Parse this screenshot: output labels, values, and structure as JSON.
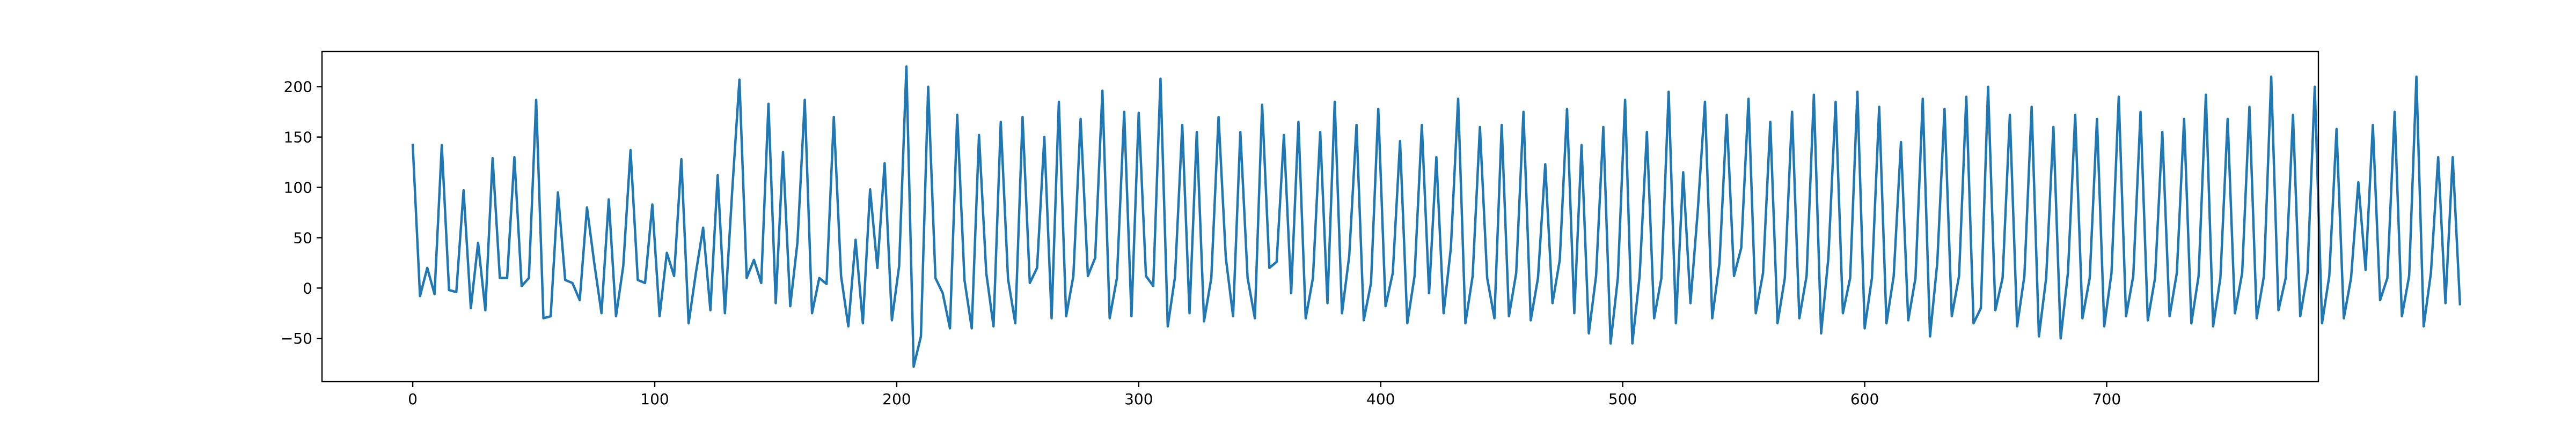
{
  "chart_data": {
    "type": "line",
    "title": "",
    "xlabel": "",
    "ylabel": "",
    "xlim": [
      -37.5,
      787.5
    ],
    "ylim": [
      -93,
      235
    ],
    "x_ticks": [
      0,
      100,
      200,
      300,
      400,
      500,
      600,
      700
    ],
    "y_ticks": [
      -50,
      0,
      50,
      100,
      150,
      200
    ],
    "grid": false,
    "legend": "none",
    "line_color": "#1f77b4",
    "series": [
      {
        "x_start": 0,
        "x_step": 3,
        "values": [
          142,
          -8,
          20,
          -6,
          142,
          -2,
          -4,
          97,
          -20,
          45,
          -22,
          129,
          10,
          10,
          130,
          2,
          10,
          187,
          -30,
          -28,
          95,
          8,
          5,
          -12,
          80,
          25,
          -25,
          88,
          -28,
          22,
          137,
          8,
          5,
          83,
          -28,
          35,
          12,
          128,
          -35,
          15,
          60,
          -22,
          112,
          -25,
          96,
          207,
          10,
          28,
          5,
          183,
          -15,
          135,
          -18,
          46,
          187,
          -25,
          10,
          4,
          170,
          12,
          -38,
          48,
          -35,
          98,
          20,
          124,
          -32,
          22,
          220,
          -78,
          -48,
          200,
          10,
          -5,
          -40,
          172,
          8,
          -40,
          152,
          15,
          -38,
          165,
          9,
          -35,
          170,
          5,
          20,
          150,
          -30,
          185,
          -28,
          12,
          168,
          12,
          30,
          196,
          -30,
          10,
          175,
          -28,
          174,
          12,
          2,
          208,
          -38,
          11,
          162,
          -25,
          155,
          -33,
          10,
          170,
          30,
          -28,
          155,
          10,
          -30,
          182,
          20,
          26,
          152,
          -5,
          165,
          -30,
          10,
          155,
          -15,
          185,
          -25,
          32,
          162,
          -32,
          5,
          178,
          -18,
          15,
          146,
          -35,
          12,
          162,
          -5,
          130,
          -25,
          40,
          188,
          -35,
          12,
          160,
          10,
          -30,
          162,
          -28,
          15,
          175,
          -32,
          10,
          123,
          -15,
          28,
          178,
          -25,
          142,
          -45,
          12,
          160,
          -55,
          10,
          187,
          -55,
          12,
          155,
          -30,
          10,
          195,
          -35,
          115,
          -15,
          76,
          185,
          -30,
          25,
          172,
          12,
          40,
          188,
          -25,
          15,
          165,
          -35,
          10,
          175,
          -30,
          12,
          192,
          -45,
          30,
          185,
          -25,
          10,
          195,
          -40,
          10,
          180,
          -35,
          12,
          145,
          -32,
          10,
          188,
          -48,
          25,
          178,
          -28,
          12,
          190,
          -35,
          -20,
          200,
          -22,
          10,
          172,
          -38,
          12,
          180,
          -48,
          10,
          160,
          -50,
          15,
          172,
          -30,
          10,
          168,
          -38,
          15,
          190,
          -28,
          12,
          175,
          -32,
          10,
          155,
          -28,
          15,
          168,
          -35,
          12,
          192,
          -38,
          10,
          168,
          -25,
          15,
          180,
          -30,
          12,
          210,
          -22,
          10,
          172,
          -28,
          15,
          200,
          -35,
          12,
          158,
          -30,
          10,
          105,
          18,
          162,
          -12,
          10,
          175,
          -28,
          12,
          210,
          -38,
          15,
          130,
          -15,
          130,
          -16
        ]
      }
    ]
  }
}
